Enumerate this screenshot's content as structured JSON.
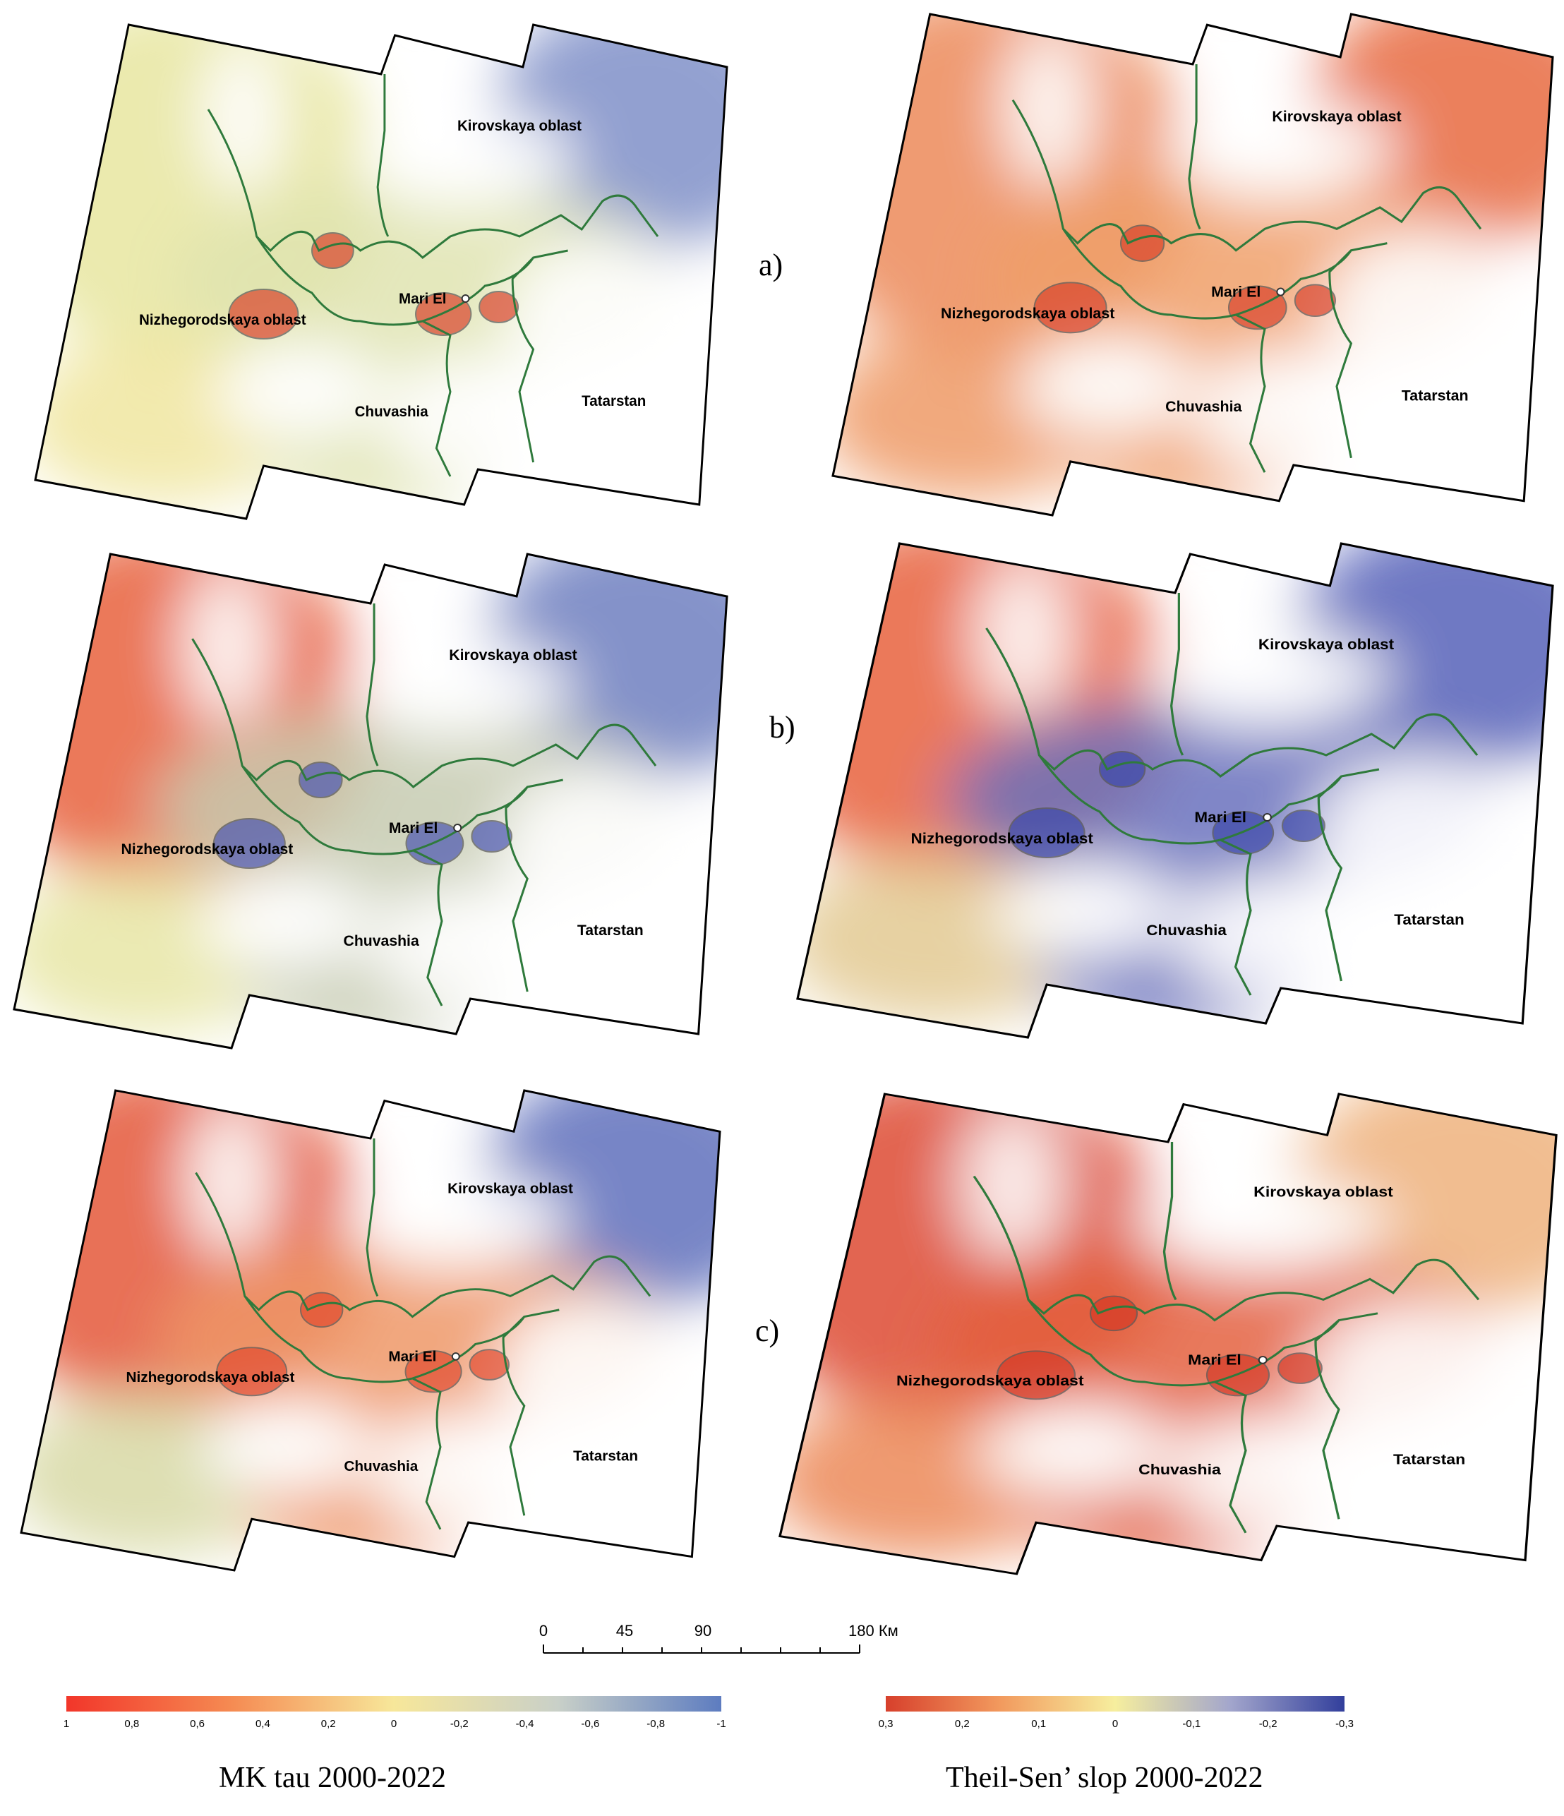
{
  "maps": [
    {
      "id": "a-tau",
      "row": "a",
      "metric": "tau",
      "labels": {
        "kirov": "Kirovskaya oblast",
        "nizh": "Nizhegorodskaya oblast",
        "mari": "Mari El",
        "chuv": "Chuvashia",
        "tat": "Tatarstan"
      },
      "colors": {
        "nw": "#e8e6a0",
        "ne": "#7f8fc8",
        "mid": "#dfe4b0",
        "sw": "#f0e6a0",
        "accent": "#d9442b"
      }
    },
    {
      "id": "a-slope",
      "row": "a",
      "metric": "slope",
      "labels": {
        "kirov": "Kirovskaya oblast",
        "nizh": "Nizhegorodskaya oblast",
        "mari": "Mari El",
        "chuv": "Chuvashia",
        "tat": "Tatarstan"
      },
      "colors": {
        "nw": "#ec8a5a",
        "ne": "#e76a3f",
        "mid": "#f0a06a",
        "sw": "#ee9a66",
        "accent": "#d9442b"
      }
    },
    {
      "id": "b-tau",
      "row": "b",
      "metric": "tau",
      "labels": {
        "kirov": "Kirovskaya oblast",
        "nizh": "Nizhegorodskaya oblast",
        "mari": "Mari El",
        "chuv": "Chuvashia",
        "tat": "Tatarstan"
      },
      "colors": {
        "nw": "#e8623c",
        "ne": "#6f7fc0",
        "mid": "#c7cbb2",
        "sw": "#e8e6a6",
        "accent": "#4a56b0"
      }
    },
    {
      "id": "b-slope",
      "row": "b",
      "metric": "slope",
      "labels": {
        "kirov": "Kirovskaya oblast",
        "nizh": "Nizhegorodskaya oblast",
        "mari": "Mari El",
        "chuv": "Chuvashia",
        "tat": "Tatarstan"
      },
      "colors": {
        "nw": "#e8623c",
        "ne": "#5560b8",
        "mid": "#6a72bd",
        "sw": "#e3c992",
        "accent": "#3c48a8"
      }
    },
    {
      "id": "c-tau",
      "row": "c",
      "metric": "tau",
      "labels": {
        "kirov": "Kirovskaya oblast",
        "nizh": "Nizhegorodskaya oblast",
        "mari": "Mari El",
        "chuv": "Chuvashia",
        "tat": "Tatarstan"
      },
      "colors": {
        "nw": "#e4583a",
        "ne": "#5f70bc",
        "mid": "#ee9868",
        "sw": "#d8d9a6",
        "accent": "#e24a2e"
      }
    },
    {
      "id": "c-slope",
      "row": "c",
      "metric": "slope",
      "labels": {
        "kirov": "Kirovskaya oblast",
        "nizh": "Nizhegorodskaya oblast",
        "mari": "Mari El",
        "chuv": "Chuvashia",
        "tat": "Tatarstan"
      },
      "colors": {
        "nw": "#dd4a32",
        "ne": "#eeb27c",
        "mid": "#e4603e",
        "sw": "#ec8858",
        "accent": "#d43a26"
      }
    }
  ],
  "row_labels": {
    "a": "a)",
    "b": "b)",
    "c": "c)"
  },
  "scalebar": {
    "ticks": [
      "0",
      "45",
      "90",
      "180 Км"
    ]
  },
  "legends": {
    "tau": {
      "title": "MK tau 2000-2022",
      "ticks": [
        "1",
        "0,8",
        "0,6",
        "0,4",
        "0,2",
        "0",
        "-0,2",
        "-0,4",
        "-0,6",
        "-0,8",
        "-1"
      ],
      "gradient": [
        "#f2362a",
        "#f58a52",
        "#f7e79a",
        "#c9d0c8",
        "#5d7cc0"
      ]
    },
    "slope": {
      "title": "Theil-Sen’ slop  2000-2022",
      "ticks": [
        "0,3",
        "0,2",
        "0,1",
        "0",
        "-0,1",
        "-0,2",
        "-0,3"
      ],
      "gradient": [
        "#d7402c",
        "#f29a5e",
        "#f6ee9e",
        "#a3a6cc",
        "#323f9c"
      ]
    }
  }
}
